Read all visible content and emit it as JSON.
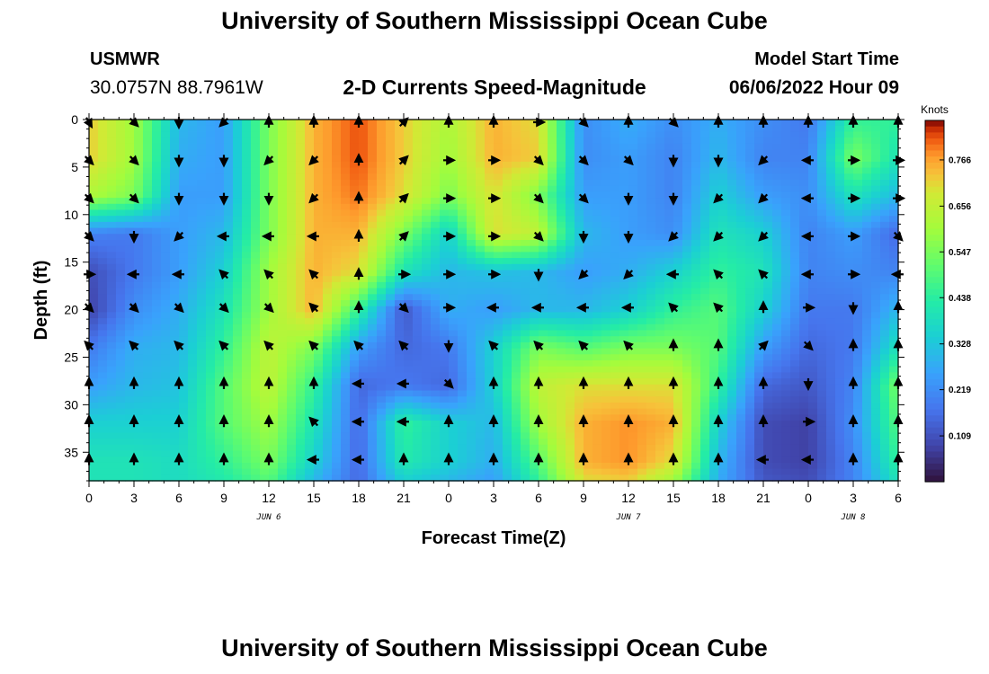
{
  "header": {
    "title": "University of Southern Mississippi Ocean Cube",
    "station": "USMWR",
    "coords": "30.0757N  88.7961W",
    "product": "2-D Currents Speed-Magnitude",
    "model_label": "Model Start Time",
    "model_time": "06/06/2022 Hour 09"
  },
  "footer": {
    "title": "University of Southern Mississippi Ocean Cube"
  },
  "chart_data": {
    "type": "heatmap",
    "xlabel": "Forecast Time(Z)",
    "ylabel": "Depth (ft)",
    "x_ticks": [
      "0",
      "3",
      "6",
      "9",
      "12",
      "15",
      "18",
      "21",
      "0",
      "3",
      "6",
      "9",
      "12",
      "15",
      "18",
      "21",
      "0",
      "3",
      "6"
    ],
    "date_labels": [
      {
        "label": "JUN 6",
        "at_hour": 12
      },
      {
        "label": "JUN 7",
        "at_hour": 36
      },
      {
        "label": "JUN 8",
        "at_hour": 51
      }
    ],
    "x_range_hours": [
      0,
      54
    ],
    "y_ticks": [
      "0",
      "5",
      "10",
      "15",
      "20",
      "25",
      "30",
      "35"
    ],
    "ylim": [
      0,
      38
    ],
    "y_inverted": true,
    "colorbar": {
      "unit": "Knots",
      "labels": [
        "0.766",
        "0.656",
        "0.547",
        "0.438",
        "0.328",
        "0.219",
        "0.109"
      ],
      "label_values": [
        0.766,
        0.656,
        0.547,
        0.438,
        0.328,
        0.219,
        0.109
      ],
      "range": [
        0.0,
        0.86
      ]
    },
    "grid": false,
    "vector_hours": [
      0,
      3,
      6,
      9,
      12,
      15,
      18,
      21,
      24,
      27,
      30,
      33,
      36,
      39,
      42,
      45,
      48,
      51,
      54
    ],
    "vector_depths": [
      0,
      4,
      8,
      12,
      16,
      19.5,
      23.5,
      27.5,
      31.5,
      35.5
    ],
    "speed_grid_depths": [
      0,
      4,
      8,
      12,
      16,
      20,
      24,
      28,
      32,
      36,
      38
    ],
    "speed_grid": [
      [
        0.72,
        0.6,
        0.3,
        0.25,
        0.55,
        0.75,
        0.82,
        0.72,
        0.62,
        0.75,
        0.7,
        0.22,
        0.28,
        0.22,
        0.28,
        0.22,
        0.18,
        0.45,
        0.45
      ],
      [
        0.72,
        0.6,
        0.28,
        0.25,
        0.55,
        0.75,
        0.82,
        0.72,
        0.6,
        0.75,
        0.72,
        0.22,
        0.25,
        0.2,
        0.3,
        0.2,
        0.2,
        0.55,
        0.4
      ],
      [
        0.62,
        0.55,
        0.25,
        0.25,
        0.55,
        0.75,
        0.8,
        0.7,
        0.55,
        0.7,
        0.55,
        0.25,
        0.25,
        0.2,
        0.35,
        0.25,
        0.22,
        0.4,
        0.3
      ],
      [
        0.2,
        0.18,
        0.25,
        0.3,
        0.55,
        0.75,
        0.75,
        0.55,
        0.35,
        0.7,
        0.65,
        0.3,
        0.25,
        0.22,
        0.4,
        0.35,
        0.2,
        0.25,
        0.15
      ],
      [
        0.1,
        0.18,
        0.25,
        0.35,
        0.6,
        0.75,
        0.7,
        0.4,
        0.3,
        0.32,
        0.3,
        0.25,
        0.28,
        0.35,
        0.45,
        0.4,
        0.2,
        0.22,
        0.2
      ],
      [
        0.08,
        0.22,
        0.28,
        0.4,
        0.6,
        0.75,
        0.45,
        0.12,
        0.28,
        0.25,
        0.3,
        0.3,
        0.35,
        0.45,
        0.5,
        0.35,
        0.18,
        0.18,
        0.3
      ],
      [
        0.18,
        0.28,
        0.3,
        0.45,
        0.65,
        0.55,
        0.25,
        0.15,
        0.18,
        0.35,
        0.55,
        0.5,
        0.55,
        0.55,
        0.5,
        0.25,
        0.15,
        0.18,
        0.4
      ],
      [
        0.25,
        0.3,
        0.32,
        0.5,
        0.65,
        0.45,
        0.15,
        0.18,
        0.15,
        0.35,
        0.65,
        0.7,
        0.7,
        0.7,
        0.45,
        0.15,
        0.12,
        0.2,
        0.55
      ],
      [
        0.35,
        0.35,
        0.35,
        0.5,
        0.6,
        0.4,
        0.15,
        0.45,
        0.35,
        0.3,
        0.6,
        0.75,
        0.78,
        0.75,
        0.35,
        0.1,
        0.08,
        0.22,
        0.5
      ],
      [
        0.4,
        0.4,
        0.38,
        0.45,
        0.55,
        0.35,
        0.15,
        0.42,
        0.35,
        0.28,
        0.5,
        0.75,
        0.78,
        0.7,
        0.3,
        0.1,
        0.08,
        0.2,
        0.45
      ],
      [
        0.4,
        0.4,
        0.38,
        0.42,
        0.5,
        0.3,
        0.15,
        0.35,
        0.3,
        0.25,
        0.45,
        0.7,
        0.72,
        0.6,
        0.28,
        0.12,
        0.1,
        0.2,
        0.4
      ]
    ],
    "direction_grid_deg": [
      [
        150,
        135,
        180,
        225,
        0,
        0,
        0,
        45,
        0,
        0,
        90,
        135,
        0,
        135,
        0,
        0,
        0,
        0,
        0
      ],
      [
        135,
        135,
        180,
        180,
        225,
        225,
        0,
        45,
        90,
        90,
        135,
        135,
        135,
        180,
        180,
        225,
        270,
        90,
        90
      ],
      [
        135,
        135,
        180,
        180,
        180,
        225,
        0,
        45,
        90,
        90,
        135,
        135,
        180,
        180,
        225,
        225,
        270,
        90,
        90
      ],
      [
        135,
        180,
        225,
        270,
        270,
        270,
        0,
        45,
        90,
        90,
        135,
        180,
        180,
        225,
        225,
        225,
        270,
        90,
        135
      ],
      [
        90,
        270,
        270,
        315,
        315,
        315,
        0,
        90,
        90,
        90,
        180,
        225,
        225,
        270,
        315,
        315,
        270,
        90,
        270
      ],
      [
        135,
        135,
        135,
        135,
        135,
        315,
        0,
        135,
        90,
        270,
        270,
        270,
        270,
        315,
        315,
        0,
        90,
        180,
        0
      ],
      [
        315,
        315,
        315,
        315,
        315,
        315,
        315,
        315,
        180,
        315,
        315,
        315,
        315,
        0,
        0,
        45,
        135,
        0,
        0
      ],
      [
        0,
        0,
        0,
        0,
        0,
        0,
        270,
        270,
        135,
        0,
        0,
        0,
        0,
        0,
        0,
        0,
        180,
        0,
        0
      ],
      [
        0,
        0,
        0,
        0,
        0,
        315,
        270,
        270,
        0,
        0,
        0,
        0,
        0,
        0,
        0,
        0,
        90,
        0,
        0
      ],
      [
        0,
        0,
        0,
        0,
        0,
        270,
        270,
        0,
        0,
        0,
        0,
        0,
        0,
        0,
        0,
        270,
        270,
        0,
        0
      ]
    ]
  }
}
